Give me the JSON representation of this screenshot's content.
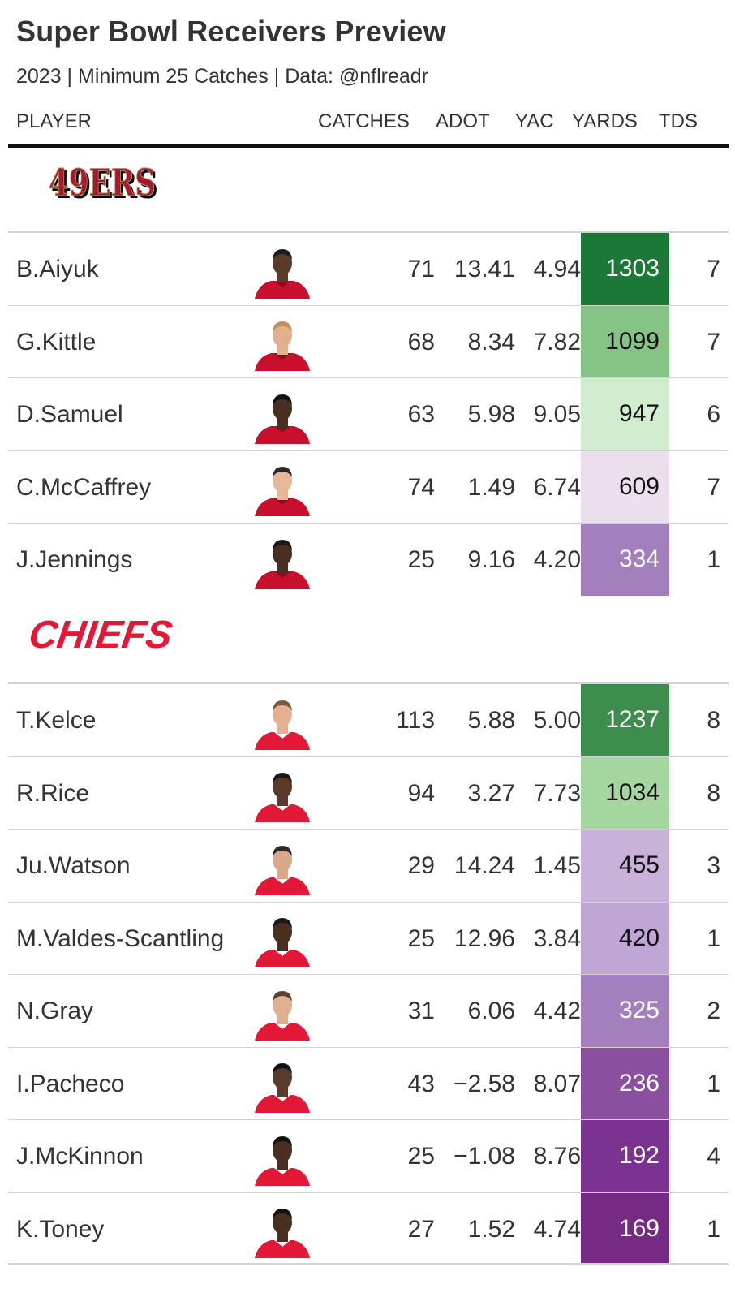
{
  "title": "Super Bowl Receivers Preview",
  "subtitle": "2023 | Minimum 25 Catches | Data: @nflreadr",
  "columns": {
    "player": "PLAYER",
    "catches": "CATCHES",
    "adot": "ADOT",
    "yac": "YAC",
    "yards": "YARDS",
    "tds": "TDS"
  },
  "teams": [
    {
      "logo_text": "49ERS",
      "logo_color": "#a71930",
      "players": [
        {
          "name": "B.Aiyuk",
          "catches": "71",
          "adot": "13.41",
          "yac": "4.94",
          "yards": "1303",
          "tds": "7",
          "yards_bg": "#1b7837",
          "yards_fg": "#ffffff",
          "skin": "#5a3a28",
          "hair": "#1a1a1a"
        },
        {
          "name": "G.Kittle",
          "catches": "68",
          "adot": "8.34",
          "yac": "7.82",
          "yards": "1099",
          "tds": "7",
          "yards_bg": "#86c386",
          "yards_fg": "#111111",
          "skin": "#e3b08e",
          "hair": "#c09060"
        },
        {
          "name": "D.Samuel",
          "catches": "63",
          "adot": "5.98",
          "yac": "9.05",
          "yards": "947",
          "tds": "6",
          "yards_bg": "#d1ecce",
          "yards_fg": "#111111",
          "skin": "#4a2e20",
          "hair": "#111111"
        },
        {
          "name": "C.McCaffrey",
          "catches": "74",
          "adot": "1.49",
          "yac": "6.74",
          "yards": "609",
          "tds": "7",
          "yards_bg": "#ebdfee",
          "yards_fg": "#111111",
          "skin": "#e6b898",
          "hair": "#2a2a2a"
        },
        {
          "name": "J.Jennings",
          "catches": "25",
          "adot": "9.16",
          "yac": "4.20",
          "yards": "334",
          "tds": "1",
          "yards_bg": "#a47fbd",
          "yards_fg": "#ffffff",
          "skin": "#4a2e20",
          "hair": "#1a1a1a"
        }
      ]
    },
    {
      "logo_text": "CHIEFS",
      "logo_color": "#e31837",
      "players": [
        {
          "name": "T.Kelce",
          "catches": "113",
          "adot": "5.88",
          "yac": "5.00",
          "yards": "1237",
          "tds": "8",
          "yards_bg": "#3d8e4d",
          "yards_fg": "#ffffff",
          "skin": "#e4b292",
          "hair": "#7a5a3a"
        },
        {
          "name": "R.Rice",
          "catches": "94",
          "adot": "3.27",
          "yac": "7.73",
          "yards": "1034",
          "tds": "8",
          "yards_bg": "#a6d6a0",
          "yards_fg": "#111111",
          "skin": "#5a3a28",
          "hair": "#1a1a1a"
        },
        {
          "name": "Ju.Watson",
          "catches": "29",
          "adot": "14.24",
          "yac": "1.45",
          "yards": "455",
          "tds": "3",
          "yards_bg": "#c9b2d9",
          "yards_fg": "#111111",
          "skin": "#d9a888",
          "hair": "#2a2a2a"
        },
        {
          "name": "M.Valdes-Scantling",
          "catches": "25",
          "adot": "12.96",
          "yac": "3.84",
          "yards": "420",
          "tds": "1",
          "yards_bg": "#c0a6d4",
          "yards_fg": "#111111",
          "skin": "#4a2e20",
          "hair": "#1a1a1a"
        },
        {
          "name": "N.Gray",
          "catches": "31",
          "adot": "6.06",
          "yac": "4.42",
          "yards": "325",
          "tds": "2",
          "yards_bg": "#a47fbd",
          "yards_fg": "#ffffff",
          "skin": "#e0b090",
          "hair": "#5a4030"
        },
        {
          "name": "I.Pacheco",
          "catches": "43",
          "adot": "−2.58",
          "yac": "8.07",
          "yards": "236",
          "tds": "1",
          "yards_bg": "#8a4f9e",
          "yards_fg": "#ffffff",
          "skin": "#5a3a28",
          "hair": "#111111"
        },
        {
          "name": "J.McKinnon",
          "catches": "25",
          "adot": "−1.08",
          "yac": "8.76",
          "yards": "192",
          "tds": "4",
          "yards_bg": "#7b3291",
          "yards_fg": "#ffffff",
          "skin": "#4a2e20",
          "hair": "#111111"
        },
        {
          "name": "K.Toney",
          "catches": "27",
          "adot": "1.52",
          "yac": "4.74",
          "yards": "169",
          "tds": "1",
          "yards_bg": "#762a83",
          "yards_fg": "#ffffff",
          "skin": "#4a2e20",
          "hair": "#111111"
        }
      ]
    }
  ]
}
